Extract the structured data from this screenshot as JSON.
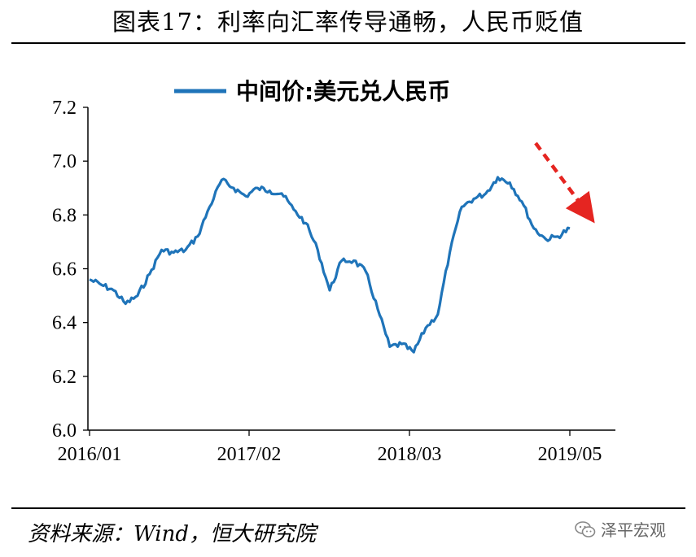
{
  "figure": {
    "title": "图表17：利率向汇率传导通畅，人民币贬值",
    "source": "资料来源：Wind，恒大研究院",
    "watermark": "泽平宏观"
  },
  "colors": {
    "series": "#1f74b9",
    "arrow": "#e52521",
    "axis": "#000000"
  },
  "chart_data": {
    "type": "line",
    "title": "",
    "xlabel": "",
    "ylabel": "",
    "ylim": [
      6.0,
      7.2
    ],
    "yticks": [
      "6.0",
      "6.2",
      "6.4",
      "6.6",
      "6.8",
      "7.0",
      "7.2"
    ],
    "xticks": [
      "2016/01",
      "2017/02",
      "2018/03",
      "2019/05"
    ],
    "grid": false,
    "legend": "top-center",
    "annotation": "downward-arrow",
    "series": [
      {
        "name": "中间价:美元兑人民币",
        "points": [
          [
            "2016/01",
            6.56
          ],
          [
            "2016/02",
            6.54
          ],
          [
            "2016/03",
            6.52
          ],
          [
            "2016/04",
            6.47
          ],
          [
            "2016/05",
            6.5
          ],
          [
            "2016/06",
            6.58
          ],
          [
            "2016/07",
            6.67
          ],
          [
            "2016/08",
            6.66
          ],
          [
            "2016/09",
            6.67
          ],
          [
            "2016/10",
            6.72
          ],
          [
            "2016/11",
            6.83
          ],
          [
            "2016/12",
            6.93
          ],
          [
            "2017/01",
            6.9
          ],
          [
            "2017/02",
            6.87
          ],
          [
            "2017/03",
            6.9
          ],
          [
            "2017/04",
            6.89
          ],
          [
            "2017/05",
            6.88
          ],
          [
            "2017/06",
            6.82
          ],
          [
            "2017/07",
            6.77
          ],
          [
            "2017/08",
            6.67
          ],
          [
            "2017/09",
            6.52
          ],
          [
            "2017/10",
            6.63
          ],
          [
            "2017/11",
            6.63
          ],
          [
            "2017/12",
            6.59
          ],
          [
            "2018/01",
            6.45
          ],
          [
            "2018/02",
            6.31
          ],
          [
            "2018/03",
            6.32
          ],
          [
            "2018/04",
            6.29
          ],
          [
            "2018/05",
            6.38
          ],
          [
            "2018/06",
            6.43
          ],
          [
            "2018/07",
            6.66
          ],
          [
            "2018/08",
            6.83
          ],
          [
            "2018/09",
            6.86
          ],
          [
            "2018/10",
            6.88
          ],
          [
            "2018/11",
            6.94
          ],
          [
            "2018/12",
            6.92
          ],
          [
            "2019/01",
            6.85
          ],
          [
            "2019/02",
            6.75
          ],
          [
            "2019/03",
            6.71
          ],
          [
            "2019/04",
            6.72
          ],
          [
            "2019/05",
            6.75
          ]
        ]
      }
    ]
  }
}
